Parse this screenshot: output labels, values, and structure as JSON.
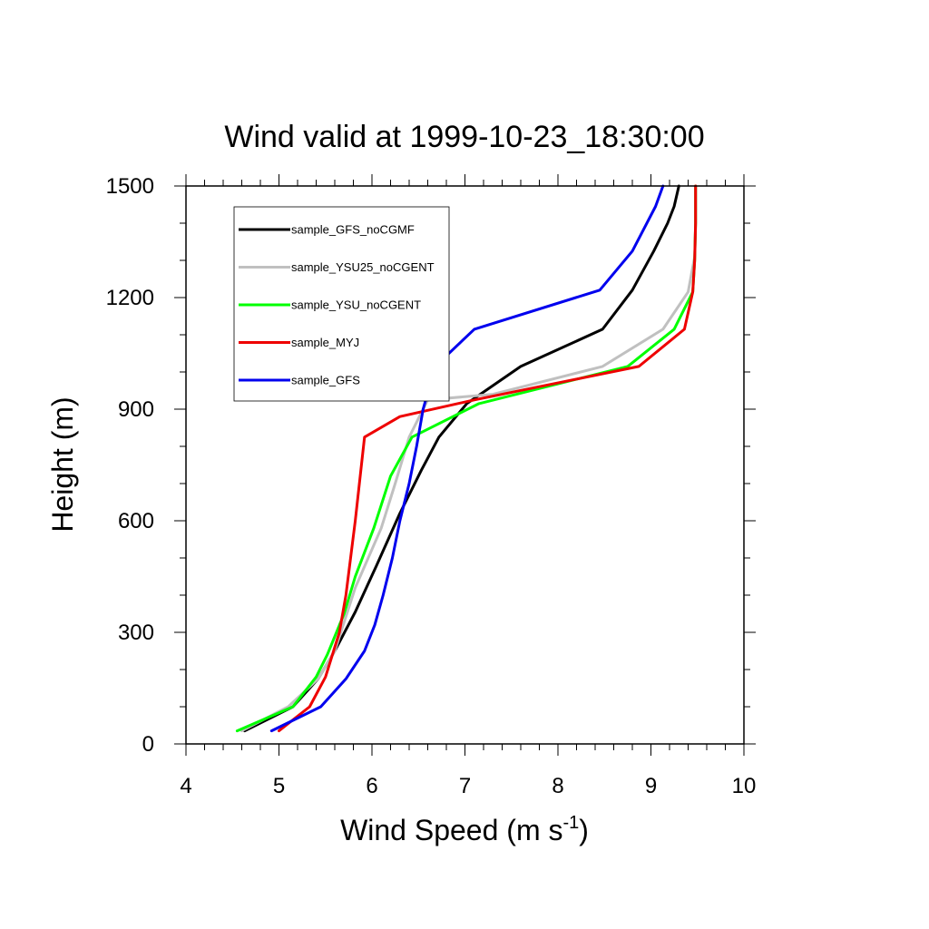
{
  "chart_data": {
    "type": "line",
    "title": "Wind valid at 1999-10-23_18:30:00",
    "xlabel": "Wind Speed (m s",
    "xlabel_sup": "-1",
    "xlabel_end": ")",
    "ylabel": "Height (m)",
    "xlim": [
      4,
      10
    ],
    "ylim": [
      0,
      1500
    ],
    "xticks": [
      "4",
      "5",
      "6",
      "7",
      "8",
      "9",
      "10"
    ],
    "yticks": [
      "0",
      "300",
      "600",
      "900",
      "1200",
      "1500"
    ],
    "legend_position": "top-left",
    "series": [
      {
        "name": "sample_GFS_noCGMF",
        "color": "#000000",
        "points": [
          [
            4.63,
            35
          ],
          [
            5.15,
            100
          ],
          [
            5.42,
            175
          ],
          [
            5.6,
            250
          ],
          [
            5.82,
            355
          ],
          [
            6.05,
            480
          ],
          [
            6.3,
            620
          ],
          [
            6.53,
            735
          ],
          [
            6.72,
            825
          ],
          [
            7.02,
            915
          ],
          [
            7.6,
            1015
          ],
          [
            8.48,
            1115
          ],
          [
            8.8,
            1220
          ],
          [
            9.03,
            1325
          ],
          [
            9.18,
            1400
          ],
          [
            9.25,
            1445
          ],
          [
            9.3,
            1500
          ]
        ]
      },
      {
        "name": "sample_YSU25_noCGENT",
        "color": "#c0c0c0",
        "points": [
          [
            4.6,
            35
          ],
          [
            5.1,
            100
          ],
          [
            5.42,
            175
          ],
          [
            5.6,
            250
          ],
          [
            5.82,
            420
          ],
          [
            6.1,
            580
          ],
          [
            6.25,
            700
          ],
          [
            6.4,
            825
          ],
          [
            6.6,
            925
          ],
          [
            7.3,
            940
          ],
          [
            8.48,
            1015
          ],
          [
            9.13,
            1115
          ],
          [
            9.4,
            1215
          ],
          [
            9.47,
            1310
          ],
          [
            9.48,
            1400
          ],
          [
            9.48,
            1500
          ]
        ]
      },
      {
        "name": "sample_YSU_noCGENT",
        "color": "#00ff00",
        "points": [
          [
            4.55,
            35
          ],
          [
            5.15,
            100
          ],
          [
            5.4,
            180
          ],
          [
            5.52,
            240
          ],
          [
            5.7,
            350
          ],
          [
            5.82,
            450
          ],
          [
            6.02,
            580
          ],
          [
            6.2,
            720
          ],
          [
            6.43,
            825
          ],
          [
            7.15,
            915
          ],
          [
            8.75,
            1015
          ],
          [
            9.25,
            1115
          ],
          [
            9.45,
            1215
          ],
          [
            9.47,
            1300
          ],
          [
            9.48,
            1400
          ],
          [
            9.48,
            1500
          ]
        ]
      },
      {
        "name": "sample_MYJ",
        "color": "#ee0000",
        "points": [
          [
            5.0,
            35
          ],
          [
            5.33,
            100
          ],
          [
            5.5,
            180
          ],
          [
            5.65,
            300
          ],
          [
            5.72,
            400
          ],
          [
            5.82,
            600
          ],
          [
            5.92,
            825
          ],
          [
            6.3,
            880
          ],
          [
            7.1,
            925
          ],
          [
            8.87,
            1015
          ],
          [
            9.36,
            1115
          ],
          [
            9.45,
            1215
          ],
          [
            9.47,
            1300
          ],
          [
            9.48,
            1400
          ],
          [
            9.48,
            1500
          ]
        ]
      },
      {
        "name": "sample_GFS",
        "color": "#0000ee",
        "points": [
          [
            4.92,
            35
          ],
          [
            5.45,
            100
          ],
          [
            5.72,
            175
          ],
          [
            5.92,
            250
          ],
          [
            6.03,
            320
          ],
          [
            6.12,
            400
          ],
          [
            6.22,
            500
          ],
          [
            6.3,
            600
          ],
          [
            6.4,
            700
          ],
          [
            6.48,
            800
          ],
          [
            6.55,
            900
          ],
          [
            6.68,
            1015
          ],
          [
            7.1,
            1115
          ],
          [
            8.45,
            1220
          ],
          [
            8.8,
            1325
          ],
          [
            9.05,
            1445
          ],
          [
            9.13,
            1500
          ]
        ]
      }
    ]
  }
}
